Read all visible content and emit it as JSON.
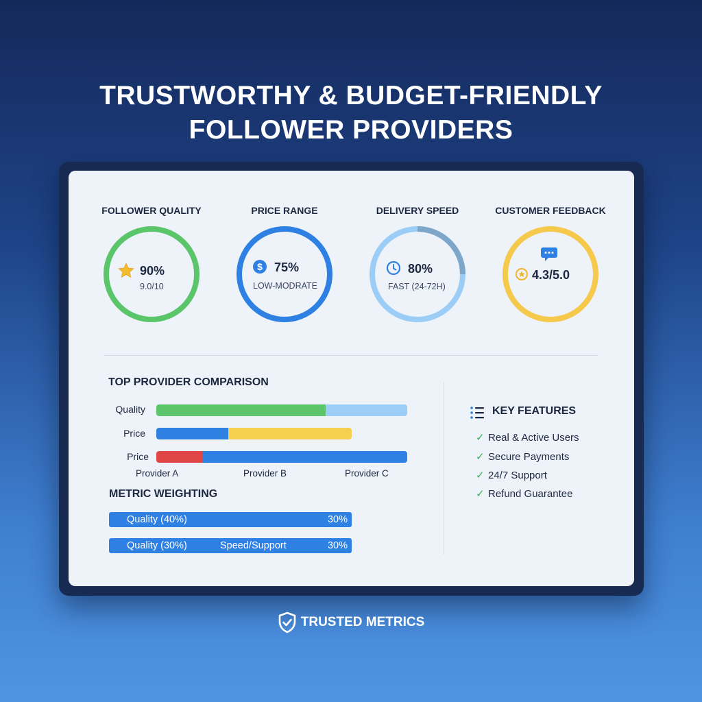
{
  "title": {
    "line1": "TRUSTWORTHY & BUDGET-FRIENDLY",
    "line2": "FOLLOWER PROVIDERS"
  },
  "metrics": [
    {
      "label": "FOLLOWER QUALITY",
      "value": "90%",
      "sub": "9.0/10",
      "icon": "star-icon",
      "color": "#55c266",
      "fill": 1.0
    },
    {
      "label": "PRICE RANGE",
      "value": "75%",
      "sub": "LOW-MODRATE",
      "icon": "dollar-icon",
      "color": "#2f80e3",
      "fill": 1.0
    },
    {
      "label": "DELIVERY SPEED",
      "value": "80%",
      "sub": "FAST (24-72H)",
      "icon": "clock-icon",
      "color": "#8fc8f7",
      "fill": 1.0
    },
    {
      "label": "CUSTOMER FEEDBACK",
      "value": "4.3/5.0",
      "sub": "",
      "icon": "chat-bubble-icon",
      "color": "#f4c84a",
      "fill": 1.0
    }
  ],
  "comparison": {
    "title": "TOP PROVIDER COMPARISON",
    "rows": [
      {
        "label": "Quality"
      },
      {
        "label": "Price"
      },
      {
        "label": "Price"
      }
    ],
    "providers": [
      "Provider A",
      "Provider B",
      "Provider C"
    ]
  },
  "weighting": {
    "title": "METRIC WEIGHTING",
    "rows": [
      {
        "left": "Quality (40%)",
        "middle": "",
        "right": "30%"
      },
      {
        "left": "Quality (30%)",
        "middle": "Speed/Support",
        "right": "30%"
      }
    ]
  },
  "features": {
    "title": "KEY FEATURES",
    "items": [
      "Real & Active Users",
      "Secure Payments",
      "24/7 Support",
      "Refund Guarantee"
    ]
  },
  "footer": {
    "brand": "TRUSTED METRICS"
  }
}
